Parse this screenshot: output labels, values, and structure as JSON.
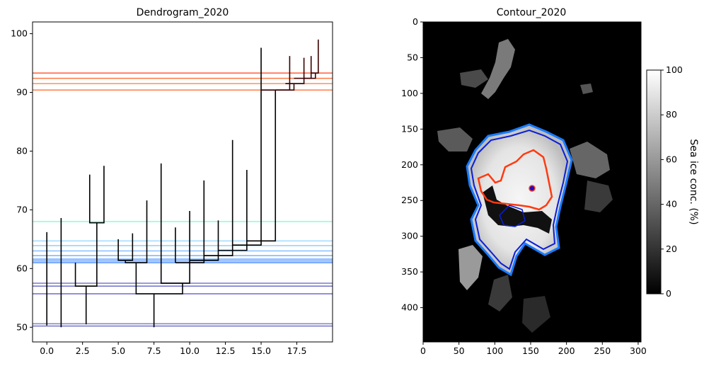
{
  "chart_data": [
    {
      "type": "dendrogram",
      "title": "Dendrogram_2020",
      "xlim": [
        -1,
        20
      ],
      "ylim": [
        47.5,
        102
      ],
      "x_ticks": [
        0.0,
        2.5,
        5.0,
        7.5,
        10.0,
        12.5,
        15.0,
        17.5
      ],
      "x_tick_labels": [
        "0.0",
        "2.5",
        "5.0",
        "7.5",
        "10.0",
        "12.5",
        "15.0",
        "17.5"
      ],
      "y_ticks": [
        50,
        60,
        70,
        80,
        90,
        100
      ],
      "y_tick_labels": [
        "50",
        "60",
        "70",
        "80",
        "90",
        "100"
      ],
      "horizontal_levels": [
        {
          "y": 50.2,
          "color": "#7b7bc8"
        },
        {
          "y": 50.6,
          "color": "#8a8acb"
        },
        {
          "y": 55.7,
          "color": "#6a6ad6"
        },
        {
          "y": 57.0,
          "color": "#7a7ad0"
        },
        {
          "y": 57.5,
          "color": "#8686cc"
        },
        {
          "y": 61.0,
          "color": "#5c95ff"
        },
        {
          "y": 61.3,
          "color": "#66a0ff"
        },
        {
          "y": 61.6,
          "color": "#70aaff"
        },
        {
          "y": 62.2,
          "color": "#80b8ff"
        },
        {
          "y": 63.0,
          "color": "#8ec4ff"
        },
        {
          "y": 63.9,
          "color": "#9cd0ff"
        },
        {
          "y": 64.7,
          "color": "#a8dcff"
        },
        {
          "y": 68.0,
          "color": "#8dffdc"
        },
        {
          "y": 90.4,
          "color": "#ff8855"
        },
        {
          "y": 91.5,
          "color": "#ff9966"
        },
        {
          "y": 92.4,
          "color": "#ff7744"
        },
        {
          "y": 93.3,
          "color": "#ff6a4a"
        }
      ],
      "links": [
        {
          "x": [
            2,
            2,
            3.5,
            3.5
          ],
          "y": [
            61,
            57,
            57,
            67.8
          ],
          "color": "#000000"
        },
        {
          "x": [
            2.75,
            2.75
          ],
          "y": [
            50.5,
            57
          ],
          "color": "#000000"
        },
        {
          "x": [
            3,
            3,
            4,
            4
          ],
          "y": [
            76,
            67.8,
            67.8,
            77.5
          ],
          "color": "#000000"
        },
        {
          "x": [
            5,
            5,
            6,
            6
          ],
          "y": [
            65,
            61.4,
            61.4,
            66
          ],
          "color": "#000000"
        },
        {
          "x": [
            5.5,
            5.5,
            7,
            7
          ],
          "y": [
            61.4,
            61,
            61,
            71.6
          ],
          "color": "#000000"
        },
        {
          "x": [
            6.25,
            6.25,
            9.5,
            9.5
          ],
          "y": [
            61,
            55.7,
            55.7,
            57.5
          ],
          "color": "#000000"
        },
        {
          "x": [
            7.5,
            7.5
          ],
          "y": [
            50,
            55.7
          ],
          "color": "#000000"
        },
        {
          "x": [
            8,
            8,
            10,
            10
          ],
          "y": [
            77.9,
            57.5,
            57.5,
            69.8
          ],
          "color": "#000000"
        },
        {
          "x": [
            9,
            9
          ],
          "y": [
            61,
            67
          ],
          "color": "#000000"
        },
        {
          "x": [
            9,
            11,
            11
          ],
          "y": [
            61,
            61,
            75
          ],
          "color": "#000000"
        },
        {
          "x": [
            10,
            12,
            12
          ],
          "y": [
            61.4,
            61.4,
            68.2
          ],
          "color": "#000000"
        },
        {
          "x": [
            11,
            11
          ],
          "y": [
            62.2,
            62.2
          ],
          "color": "#000000"
        },
        {
          "x": [
            11,
            13,
            13
          ],
          "y": [
            62.2,
            62.2,
            81.9
          ],
          "color": "#000000"
        },
        {
          "x": [
            12,
            14,
            14
          ],
          "y": [
            63.1,
            63.1,
            76.8
          ],
          "color": "#000000"
        },
        {
          "x": [
            13,
            15,
            15
          ],
          "y": [
            64,
            64,
            97.6
          ],
          "color": "#000000"
        },
        {
          "x": [
            14,
            16,
            16
          ],
          "y": [
            64.7,
            64.7,
            90.4
          ],
          "color": "#000000"
        },
        {
          "x": [
            15,
            17,
            17
          ],
          "y": [
            90.4,
            90.4,
            96.2
          ],
          "color": "#3a0000"
        },
        {
          "x": [
            16,
            17.3,
            17.3
          ],
          "y": [
            90.4,
            90.4,
            91.5
          ],
          "color": "#3a0000"
        },
        {
          "x": [
            16.7,
            18,
            18
          ],
          "y": [
            91.5,
            91.5,
            95.9
          ],
          "color": "#3a0000"
        },
        {
          "x": [
            17.3,
            18.5,
            18.5
          ],
          "y": [
            92.4,
            92.4,
            96.2
          ],
          "color": "#3a0000"
        },
        {
          "x": [
            18,
            18.8,
            18.8
          ],
          "y": [
            92.4,
            92.4,
            93.3
          ],
          "color": "#3a0000"
        },
        {
          "x": [
            18.5,
            19,
            19
          ],
          "y": [
            93.3,
            93.3,
            99
          ],
          "color": "#3a0000"
        }
      ],
      "leaves": [
        {
          "x": 0,
          "y": 50.3
        },
        {
          "x": 1,
          "y": 50.0
        },
        {
          "x": 0,
          "y": 66.2
        },
        {
          "x": 1,
          "y": 68.6
        }
      ]
    },
    {
      "type": "heatmap",
      "title": "Contour_2020",
      "xlim": [
        0,
        304
      ],
      "ylim": [
        448,
        0
      ],
      "x_ticks": [
        0,
        50,
        100,
        150,
        200,
        250,
        300
      ],
      "x_tick_labels": [
        "0",
        "50",
        "100",
        "150",
        "200",
        "250",
        "300"
      ],
      "y_ticks": [
        0,
        50,
        100,
        150,
        200,
        250,
        300,
        350,
        400
      ],
      "y_tick_labels": [
        "0",
        "50",
        "100",
        "150",
        "200",
        "250",
        "300",
        "350",
        "400"
      ],
      "colorbar": {
        "label": "Sea ice conc. (%)",
        "range": [
          0,
          100
        ],
        "ticks": [
          0,
          20,
          40,
          60,
          80,
          100
        ],
        "tick_labels": [
          "0",
          "20",
          "40",
          "60",
          "80",
          "100"
        ],
        "colormap": "gray"
      },
      "contours": [
        {
          "level": "outer",
          "color": "#1a7bff"
        },
        {
          "level": "middle",
          "color": "#0a1ed8"
        },
        {
          "level": "inner",
          "color": "#ff3a10"
        }
      ]
    }
  ]
}
